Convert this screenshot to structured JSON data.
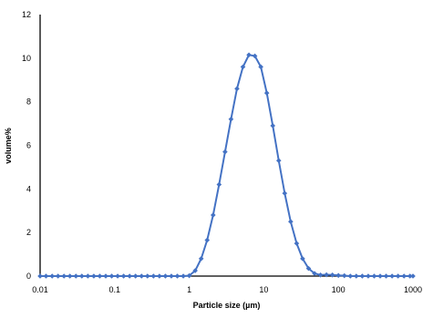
{
  "chart_data": {
    "type": "line",
    "xlabel": "Particle size (µm)",
    "ylabel": "volume%",
    "x_scale": "log",
    "xlim": [
      0.01,
      1000
    ],
    "ylim": [
      0,
      12
    ],
    "x_ticks": [
      0.01,
      0.1,
      1,
      10,
      100,
      1000
    ],
    "x_tick_labels": [
      "0.01",
      "0.1",
      "1",
      "10",
      "100",
      "1000"
    ],
    "y_ticks": [
      0,
      2,
      4,
      6,
      8,
      10,
      12
    ],
    "y_tick_labels": [
      "0",
      "2",
      "4",
      "6",
      "8",
      "10",
      "12"
    ],
    "grid": false,
    "legend": "none",
    "marker": "diamond",
    "colors": {
      "series": "#4472C4",
      "axis": "#000000"
    },
    "series": [
      {
        "x": [
          0.01,
          0.012,
          0.0145,
          0.0174,
          0.0209,
          0.0251,
          0.0302,
          0.0363,
          0.0437,
          0.0525,
          0.0631,
          0.0759,
          0.0912,
          0.1096,
          0.1318,
          0.1585,
          0.1905,
          0.2291,
          0.2754,
          0.3311,
          0.3981,
          0.4786,
          0.5754,
          0.6918,
          0.8318,
          1.0,
          1.2023,
          1.4454,
          1.7378,
          2.0893,
          2.5119,
          3.02,
          3.6308,
          4.3652,
          5.2481,
          6.3096,
          7.5858,
          9.1201,
          10.9648,
          13.1826,
          15.8489,
          19.0546,
          22.9087,
          27.5423,
          33.1131,
          39.8107,
          47.863,
          57.544,
          69.1831,
          83.1764,
          100.0,
          120.2264,
          144.544,
          173.7801,
          208.9296,
          251.1886,
          301.9952,
          363.0781,
          436.5158,
          524.8075,
          630.9573,
          758.5776,
          912.0108,
          1000.0
        ],
        "values": [
          0,
          0,
          0,
          0,
          0,
          0,
          0,
          0,
          0,
          0,
          0,
          0,
          0,
          0,
          0,
          0,
          0,
          0,
          0,
          0,
          0,
          0,
          0,
          0,
          0,
          0.02,
          0.25,
          0.8,
          1.65,
          2.8,
          4.2,
          5.7,
          7.2,
          8.6,
          9.6,
          10.15,
          10.1,
          9.6,
          8.4,
          6.9,
          5.3,
          3.8,
          2.5,
          1.5,
          0.8,
          0.35,
          0.12,
          0.05,
          0.06,
          0.05,
          0.03,
          0.02,
          0,
          0,
          0,
          0,
          0,
          0,
          0,
          0,
          0,
          0,
          0,
          0
        ]
      }
    ]
  }
}
